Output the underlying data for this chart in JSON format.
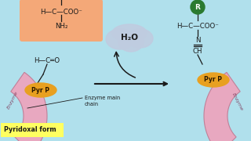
{
  "bg_color": "#b0e0ec",
  "amino_acid_box_color": "#f4a878",
  "pyr_p_color": "#e8a020",
  "enzyme_color": "#e8a8c0",
  "enzyme_border": "#c08098",
  "water_cloud_color": "#c0cce0",
  "r_group_color": "#2a7a30",
  "yellow_label_bg": "#ffff60",
  "arrow_color": "#1a1a1a",
  "text_color": "#1a1a1a",
  "label_pyridoxal": "Pyridoxal form",
  "label_enzyme_main": "Enzyme main\nchain",
  "label_pyr_p": "Pyr P",
  "label_water": "H₂O",
  "label_enzyme": "Enzyme"
}
